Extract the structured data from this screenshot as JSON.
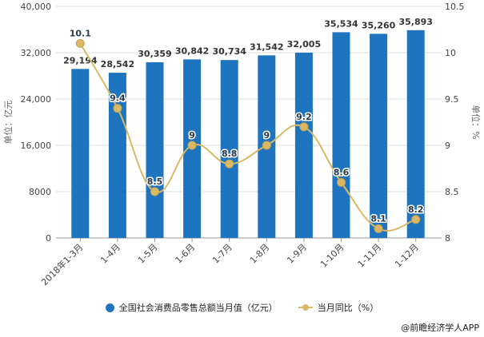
{
  "chart_data": {
    "type": "bar+line",
    "categories": [
      "2018年1-3月",
      "1-4月",
      "1-5月",
      "1-6月",
      "1-7月",
      "1-8月",
      "1-9月",
      "1-10月",
      "1-11月",
      "1-12月"
    ],
    "series": [
      {
        "name": "全国社会消费品零售总额当月值（亿元）",
        "type": "bar",
        "axis": "left",
        "color": "#1f74c0",
        "values": [
          29194,
          28542,
          30359,
          30842,
          30734,
          31542,
          32005,
          35534,
          35260,
          35893
        ],
        "labels": [
          "29,194",
          "28,542",
          "30,359",
          "30,842",
          "30,734",
          "31,542",
          "32,005",
          "35,534",
          "35,260",
          "35,893"
        ]
      },
      {
        "name": "当月同比（%）",
        "type": "line",
        "axis": "right",
        "color": "#d9b867",
        "values": [
          10.1,
          9.4,
          8.5,
          9,
          8.8,
          9,
          9.2,
          8.6,
          8.1,
          8.2
        ],
        "labels": [
          "10.1",
          "9.4",
          "8.5",
          "9",
          "8.8",
          "9",
          "9.2",
          "8.6",
          "8.1",
          "8.2"
        ]
      }
    ],
    "left_axis": {
      "label": "单位：亿元",
      "range": [
        0,
        40000
      ],
      "ticks": [
        0,
        8000,
        16000,
        24000,
        32000,
        40000
      ],
      "tick_labels": [
        "0",
        "8000",
        "16,000",
        "24,000",
        "32,000",
        "40,000"
      ]
    },
    "right_axis": {
      "label": "单位：%",
      "range": [
        8,
        10.5
      ],
      "ticks": [
        8,
        8.5,
        9,
        9.5,
        10,
        10.5
      ],
      "tick_labels": [
        "8",
        "8.5",
        "9",
        "9.5",
        "10",
        "10.5"
      ]
    },
    "grid": true,
    "legend_position": "bottom"
  },
  "credit": "@前瞻经济学人APP"
}
